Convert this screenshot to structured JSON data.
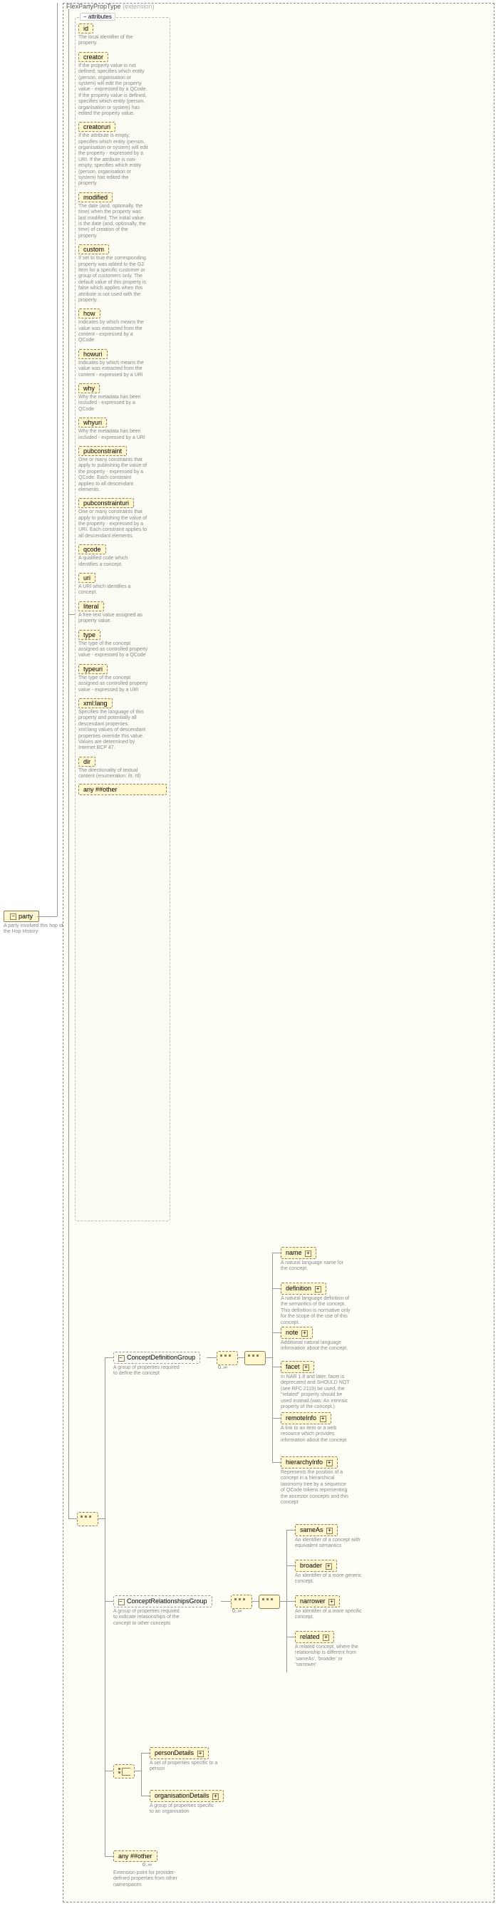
{
  "root": {
    "label": "party",
    "desc": "A party involved this hop of the Hop History"
  },
  "type": {
    "name": "FlexPartyPropType",
    "extension": "(extension)"
  },
  "attributes_panel_title": "attributes",
  "attributes": [
    {
      "name": "id",
      "desc": "The local identifier of the property."
    },
    {
      "name": "creator",
      "desc": "If the property value is not defined, specifies which entity (person, organisation or system) will edit the property value - expressed by a QCode. If the property value is defined, specifies which entity (person, organisation or system) has edited the property value."
    },
    {
      "name": "creatoruri",
      "desc": "If the attribute is empty, specifies which entity (person, organisation or system) will edit the property - expressed by a URI. If the attribute is non-empty, specifies which entity (person, organisation or system) has edited the property."
    },
    {
      "name": "modified",
      "desc": "The date (and, optionally, the time) when the property was last modified. The initial value is the date (and, optionally, the time) of creation of the property."
    },
    {
      "name": "custom",
      "desc": "If set to true the corresponding property was added to the G2 Item for a specific customer or group of customers only. The default value of this property is false which applies when this attribute is not used with the property."
    },
    {
      "name": "how",
      "desc": "Indicates by which means the value was extracted from the content - expressed by a QCode"
    },
    {
      "name": "howuri",
      "desc": "Indicates by which means the value was extracted from the content - expressed by a URI"
    },
    {
      "name": "why",
      "desc": "Why the metadata has been included - expressed by a QCode"
    },
    {
      "name": "whyuri",
      "desc": "Why the metadata has been included - expressed by a URI"
    },
    {
      "name": "pubconstraint",
      "desc": "One or many constraints that apply to publishing the value of the property - expressed by a QCode. Each constraint applies to all descendant elements."
    },
    {
      "name": "pubconstrainturi",
      "desc": "One or many constraints that apply to publishing the value of the property - expressed by a URI. Each constraint applies to all descendant elements."
    },
    {
      "name": "qcode",
      "desc": "A qualified code which identifies a concept."
    },
    {
      "name": "uri",
      "desc": "A URI which identifies a concept."
    },
    {
      "name": "literal",
      "desc": "A free-text value assigned as property value."
    },
    {
      "name": "type",
      "desc": "The type of the concept assigned as controlled property value - expressed by a QCode"
    },
    {
      "name": "typeuri",
      "desc": "The type of the concept assigned as controlled property value - expressed by a URI"
    },
    {
      "name": "xml:lang",
      "desc": "Specifies the language of this property and potentially all descendant properties. xml:lang values of descendant properties override this value. Values are determined by Internet BCP 47."
    },
    {
      "name": "dir",
      "desc": "The directionality of textual content (enumeration: ltr, rtl)"
    }
  ],
  "attr_any": "any ##other",
  "groups": {
    "conceptDef": {
      "label": "ConceptDefinitionGroup",
      "desc": "A group of properties required to define the concept",
      "occ": "0..∞",
      "items": [
        {
          "name": "name",
          "desc": "A natural language name for the concept."
        },
        {
          "name": "definition",
          "desc": "A natural language definition of the semantics of the concept. This definition is normative only for the scope of the use of this concept."
        },
        {
          "name": "note",
          "desc": "Additional natural language information about the concept."
        },
        {
          "name": "facet",
          "desc": "In NAR 1.8 and later, facet is deprecated and SHOULD NOT (see RFC 2119) be used, the \"related\" property should be used instead.(was: An intrinsic property of the concept.)"
        },
        {
          "name": "remoteInfo",
          "desc": "A link to an item or a web resource which provides information about the concept"
        },
        {
          "name": "hierarchyInfo",
          "desc": "Represents the position of a concept in a hierarchical taxonomy tree by a sequence of QCode tokens representing the ancestor concepts and this concept"
        }
      ]
    },
    "conceptRel": {
      "label": "ConceptRelationshipsGroup",
      "desc": "A group of properties required to indicate relationships of the concept to other concepts",
      "occ": "0..∞",
      "items": [
        {
          "name": "sameAs",
          "desc": "An identifier of a concept with equivalent semantics"
        },
        {
          "name": "broader",
          "desc": "An identifier of a more generic concept."
        },
        {
          "name": "narrower",
          "desc": "An identifier of a more specific concept."
        },
        {
          "name": "related",
          "desc": "A related concept, where the relationship is different from 'sameAs', 'broader' or 'narrower'."
        }
      ]
    },
    "choice": {
      "personDetails": {
        "label": "personDetails",
        "desc": "A set of properties specific to a person"
      },
      "organisationDetails": {
        "label": "organisationDetails",
        "desc": "A group of properties specific to an organisation"
      }
    },
    "bottomAny": {
      "label": "any ##other",
      "occ": "0..∞",
      "desc": "Extension point for provider-defined properties from other namespaces"
    }
  },
  "colors": {
    "box_bg": "#fff7d0",
    "box_border": "#8a8156",
    "connector": "#999999",
    "desc_text": "#888888"
  }
}
